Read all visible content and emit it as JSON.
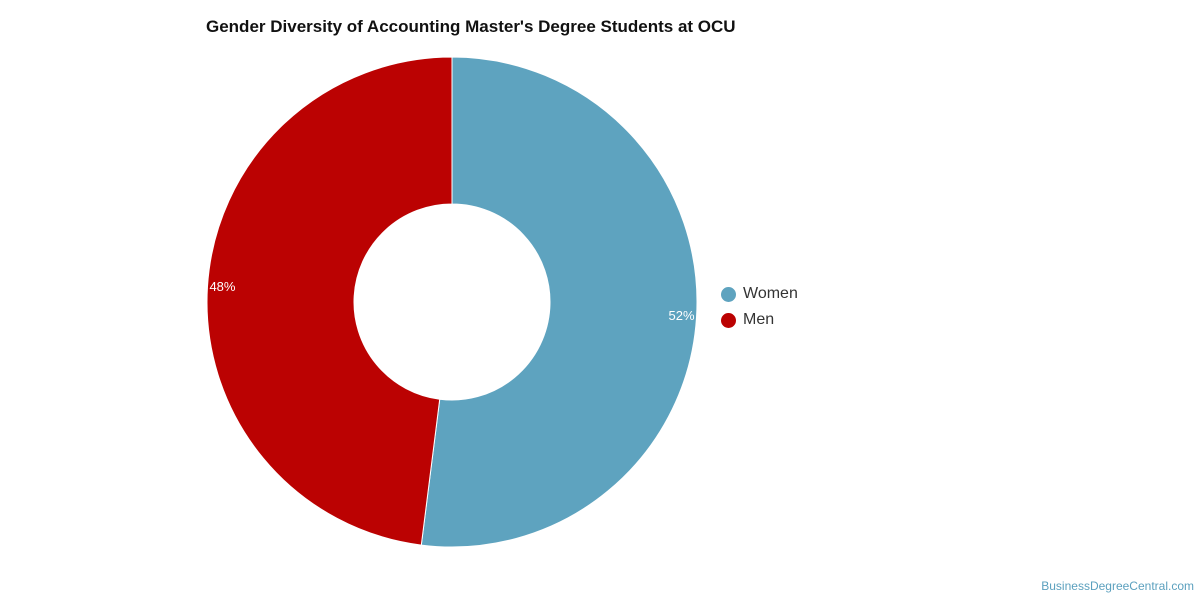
{
  "chart_data": {
    "type": "pie",
    "title": "Gender Diversity of Accounting Master's Degree Students at OCU",
    "donut": true,
    "categories": [
      "Women",
      "Men"
    ],
    "values": [
      52,
      48
    ],
    "labels": [
      "52%",
      "48%"
    ],
    "colors": [
      "#5ea3bf",
      "#bb0202"
    ],
    "label_color": "#ffffff",
    "legend_position": "right"
  },
  "source": "BusinessDegreeCentral.com"
}
